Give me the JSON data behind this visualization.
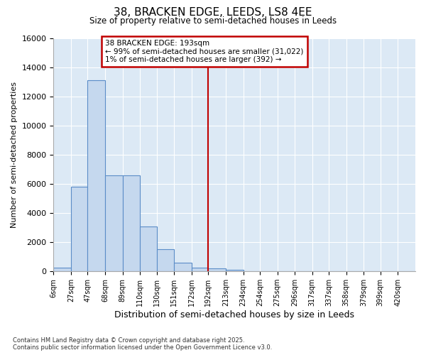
{
  "title1": "38, BRACKEN EDGE, LEEDS, LS8 4EE",
  "title2": "Size of property relative to semi-detached houses in Leeds",
  "xlabel": "Distribution of semi-detached houses by size in Leeds",
  "ylabel": "Number of semi-detached properties",
  "annotation_line1": "38 BRACKEN EDGE: 193sqm",
  "annotation_line2": "← 99% of semi-detached houses are smaller (31,022)",
  "annotation_line3": "1% of semi-detached houses are larger (392) →",
  "vline_x": 192,
  "bin_edges": [
    6,
    27,
    47,
    68,
    89,
    110,
    130,
    151,
    172,
    192,
    213,
    234,
    254,
    275,
    296,
    317,
    337,
    358,
    379,
    399,
    420,
    441
  ],
  "values": [
    270,
    5800,
    13100,
    6600,
    6600,
    3100,
    1500,
    600,
    250,
    200,
    100,
    30,
    10,
    3,
    1,
    0,
    0,
    0,
    0,
    0,
    0
  ],
  "xtick_labels": [
    "6sqm",
    "27sqm",
    "47sqm",
    "68sqm",
    "89sqm",
    "110sqm",
    "130sqm",
    "151sqm",
    "172sqm",
    "192sqm",
    "213sqm",
    "234sqm",
    "254sqm",
    "275sqm",
    "296sqm",
    "317sqm",
    "337sqm",
    "358sqm",
    "379sqm",
    "399sqm",
    "420sqm"
  ],
  "bar_facecolor": "#c5d8ee",
  "bar_edgecolor": "#5b8dc8",
  "vline_color": "#c00000",
  "box_edgecolor": "#c00000",
  "bg_color": "#dce9f5",
  "grid_color": "#ffffff",
  "ylim": [
    0,
    16000
  ],
  "yticks": [
    0,
    2000,
    4000,
    6000,
    8000,
    10000,
    12000,
    14000,
    16000
  ],
  "footer": "Contains HM Land Registry data © Crown copyright and database right 2025.\nContains public sector information licensed under the Open Government Licence v3.0."
}
